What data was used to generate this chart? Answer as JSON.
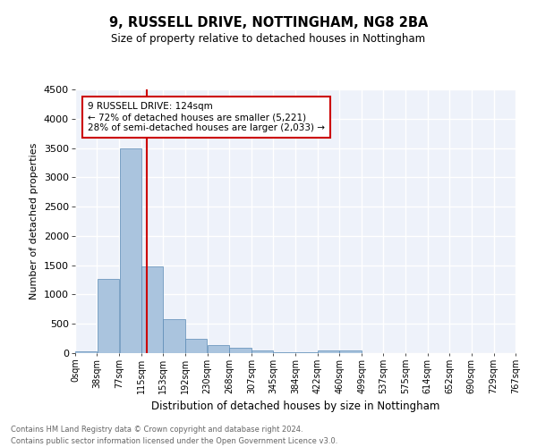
{
  "title1": "9, RUSSELL DRIVE, NOTTINGHAM, NG8 2BA",
  "title2": "Size of property relative to detached houses in Nottingham",
  "xlabel": "Distribution of detached houses by size in Nottingham",
  "ylabel": "Number of detached properties",
  "annotation_title": "9 RUSSELL DRIVE: 124sqm",
  "annotation_line1": "← 72% of detached houses are smaller (5,221)",
  "annotation_line2": "28% of semi-detached houses are larger (2,033) →",
  "footer1": "Contains HM Land Registry data © Crown copyright and database right 2024.",
  "footer2": "Contains public sector information licensed under the Open Government Licence v3.0.",
  "property_size": 124,
  "bar_edges": [
    0,
    38,
    77,
    115,
    153,
    192,
    230,
    268,
    307,
    345,
    384,
    422,
    460,
    499,
    537,
    575,
    614,
    652,
    690,
    729,
    767
  ],
  "bar_heights": [
    30,
    1270,
    3500,
    1480,
    580,
    245,
    140,
    85,
    40,
    15,
    10,
    40,
    50,
    0,
    0,
    0,
    0,
    0,
    0,
    0
  ],
  "bar_color": "#aac4de",
  "bar_edge_color": "#5a8ab5",
  "line_color": "#cc0000",
  "ylim": [
    0,
    4500
  ],
  "background_color": "#eef2fa",
  "grid_color": "#ffffff",
  "annotation_box_color": "#ffffff",
  "annotation_box_edge": "#cc0000",
  "tick_labels": [
    "0sqm",
    "38sqm",
    "77sqm",
    "115sqm",
    "153sqm",
    "192sqm",
    "230sqm",
    "268sqm",
    "307sqm",
    "345sqm",
    "384sqm",
    "422sqm",
    "460sqm",
    "499sqm",
    "537sqm",
    "575sqm",
    "614sqm",
    "652sqm",
    "690sqm",
    "729sqm",
    "767sqm"
  ],
  "yticks": [
    0,
    500,
    1000,
    1500,
    2000,
    2500,
    3000,
    3500,
    4000,
    4500
  ]
}
